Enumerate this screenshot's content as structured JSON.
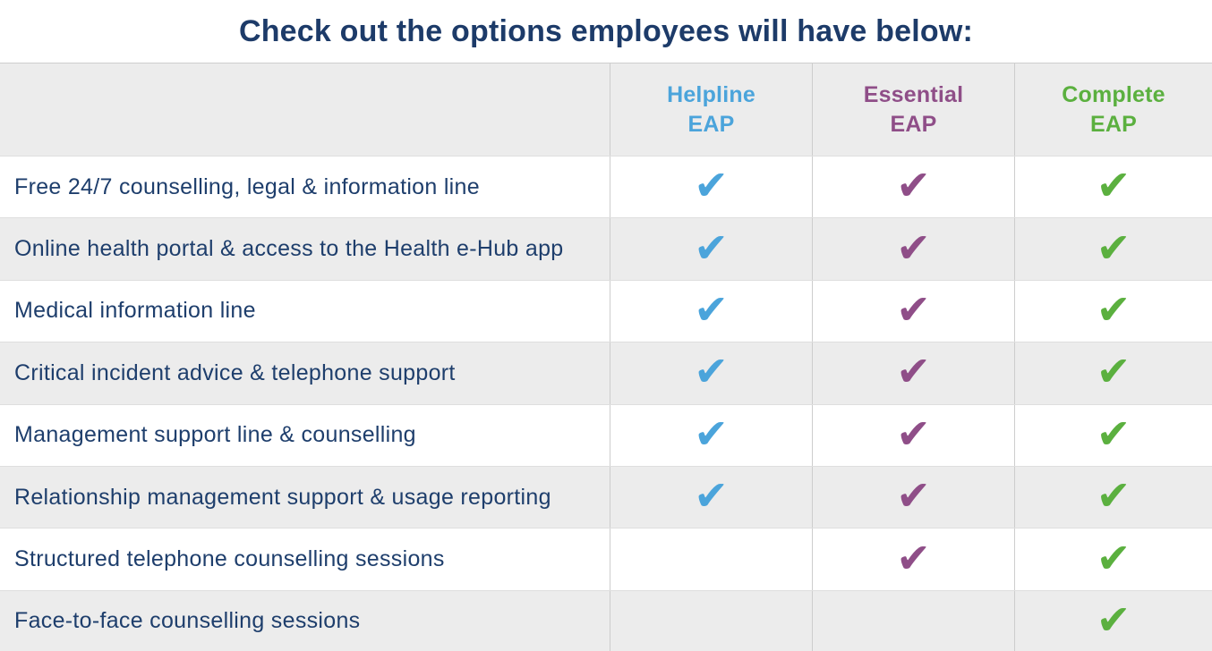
{
  "title": "Check out the options employees will have below:",
  "check_icon": "✔",
  "colors": {
    "title": "#1D3B69",
    "feature_text": "#1E3E6C",
    "helpline_blue": "#4BA4DB",
    "essential_purple": "#8F4E88",
    "complete_green": "#5BB03F",
    "header_bg": "#ECECEC",
    "alt_row_bg": "#ECECEC",
    "grid_vertical": "#CDCDCD",
    "grid_horizontal": "#DEDEDE"
  },
  "plans": [
    {
      "id": "helpline",
      "line1": "Helpline",
      "line2": "EAP",
      "color": "#4BA4DB"
    },
    {
      "id": "essential",
      "line1": "Essential",
      "line2": "EAP",
      "color": "#8F4E88"
    },
    {
      "id": "complete",
      "line1": "Complete",
      "line2": "EAP",
      "color": "#5BB03F"
    }
  ],
  "features": [
    {
      "label": "Free 24/7 counselling, legal & information line",
      "included": [
        true,
        true,
        true
      ]
    },
    {
      "label": "Online health portal & access to the Health e-Hub app",
      "included": [
        true,
        true,
        true
      ]
    },
    {
      "label": "Medical information line",
      "included": [
        true,
        true,
        true
      ]
    },
    {
      "label": "Critical incident advice & telephone support",
      "included": [
        true,
        true,
        true
      ]
    },
    {
      "label": "Management support line & counselling",
      "included": [
        true,
        true,
        true
      ]
    },
    {
      "label": "Relationship management support & usage reporting",
      "included": [
        true,
        true,
        true
      ]
    },
    {
      "label": "Structured telephone counselling sessions",
      "included": [
        false,
        true,
        true
      ]
    },
    {
      "label": "Face-to-face counselling sessions",
      "included": [
        false,
        false,
        true
      ]
    }
  ]
}
